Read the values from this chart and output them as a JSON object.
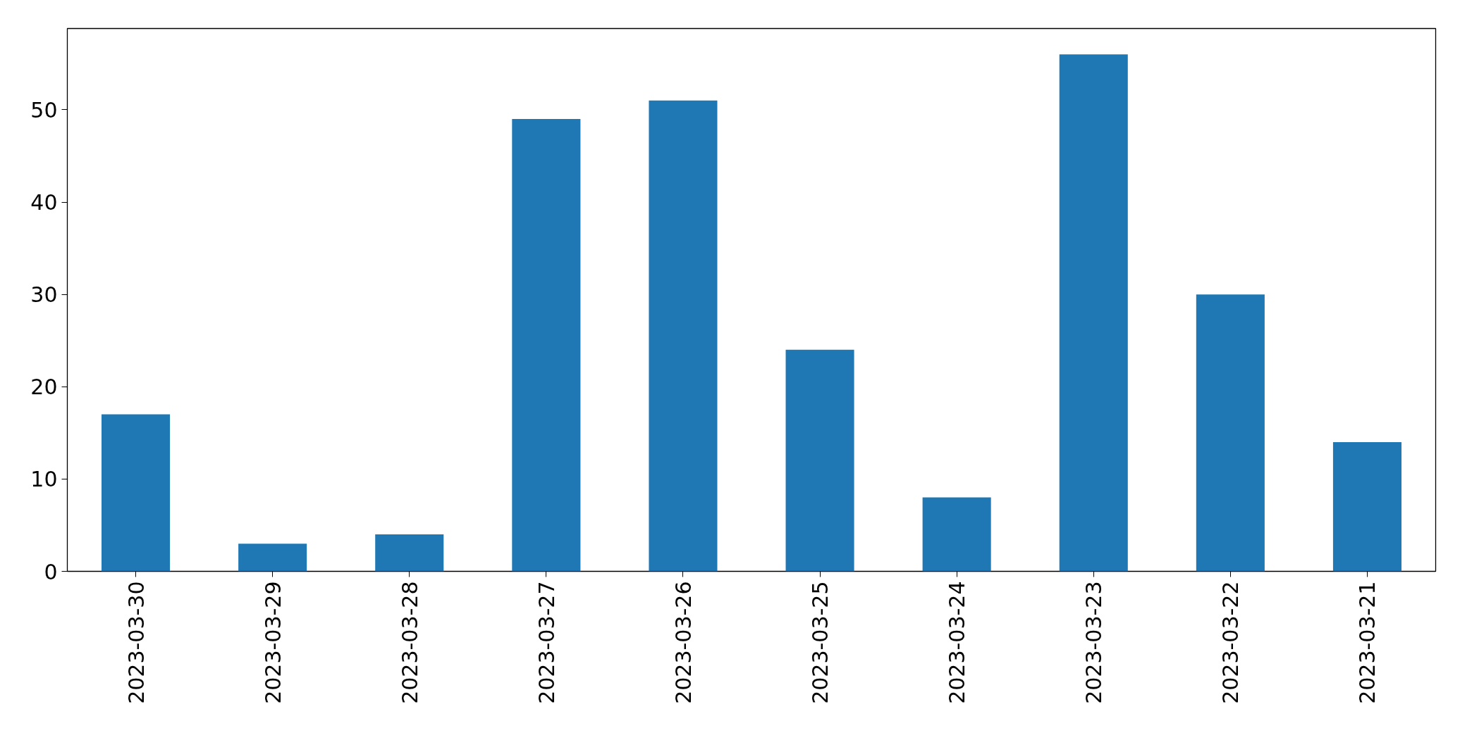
{
  "chart_data": {
    "type": "bar",
    "categories": [
      "2023-03-30",
      "2023-03-29",
      "2023-03-28",
      "2023-03-27",
      "2023-03-26",
      "2023-03-25",
      "2023-03-24",
      "2023-03-23",
      "2023-03-22",
      "2023-03-21"
    ],
    "values": [
      17,
      3,
      4,
      49,
      51,
      24,
      8,
      56,
      30,
      14
    ],
    "color": "#1f77b4",
    "ylim": [
      0,
      58.8
    ],
    "yticks": [
      0,
      10,
      20,
      30,
      40,
      50
    ],
    "grid": false
  }
}
